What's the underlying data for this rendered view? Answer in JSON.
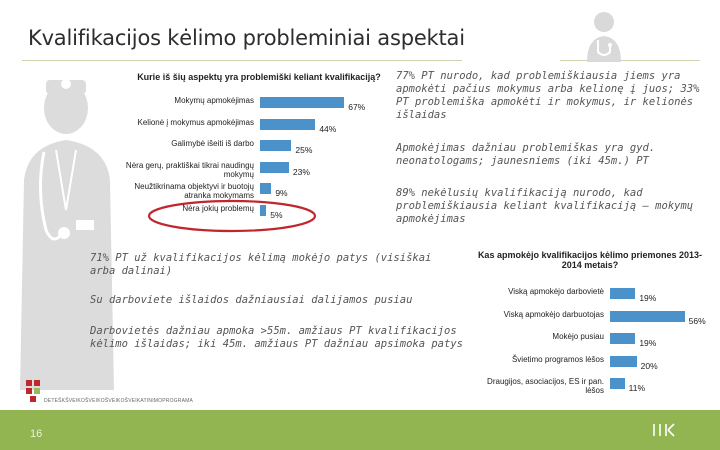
{
  "slide": {
    "title": "Kvalifikacijos kėlimo probleminiai aspektai",
    "page_number": "16",
    "org_text": "DETEŠKŠVEIKOŠVEIKOŠVEIKOŠVEIKATINIMOPROGRAMA"
  },
  "notes": {
    "n1": "77% PT nurodo, kad problemiškiausia jiems yra apmokėti pačius mokymus arba kelionę į juos; 33% PT problemiška apmokėti ir mokymus, ir kelionės išlaidas",
    "n2": "Apmokėjimas dažniau problemiškas yra gyd. neonatologams; jaunesniems (iki 45m.) PT",
    "n3": "89% nekėlusių kvalifikaciją nurodo, kad problemiškiausia keliant kvalifikaciją – mokymų apmokėjimas",
    "n4": "71% PT už kvalifikacijos kėlimą mokėjo patys (visiškai arba dalinai)",
    "n5": "Su darboviete išlaidos dažniausiai dalijamos pusiau",
    "n6": "Darbovietės dažniau apmoka >55m. amžiaus PT kvalifikacijos kėlimo išlaidas; iki 45m. amžiaus PT dažniau apsimoka patys"
  },
  "chart_data": [
    {
      "type": "bar",
      "orientation": "horizontal",
      "title": "Kurie iš šių aspektų yra problemiški keliant kvalifikaciją?",
      "categories": [
        "Mokymų apmokėjimas",
        "Kelionė į mokymus apmokėjimas",
        "Galimybė išeiti iš darbo",
        "Nėra gerų, praktiškai tikrai naudingų mokymų",
        "Neužtikrinama objektyvi ir buotojų atranka mokymams",
        "Nėra jokių problemų"
      ],
      "values": [
        67,
        44,
        25,
        23,
        9,
        5
      ],
      "value_labels": [
        "67%",
        "44%",
        "25%",
        "23%",
        "9%",
        "5%"
      ],
      "unit": "%",
      "xlim": [
        0,
        70
      ],
      "bar_color": "#4a92c9",
      "highlight_color": "#c0262d",
      "highlighted_category": "Nėra jokių problemų"
    },
    {
      "type": "bar",
      "orientation": "horizontal",
      "title": "Kas apmokėjo kvalifikacijos kėlimo priemones 2013-2014 metais?",
      "categories": [
        "Viską apmokėjo darbovietė",
        "Viską apmokėjo darbuotojas",
        "Mokėjo pusiau",
        "Švietimo programos lėšos",
        "Draugijos, asociacijos, ES ir pan. lėšos"
      ],
      "values": [
        19,
        56,
        19,
        20,
        11
      ],
      "value_labels": [
        "19%",
        "56%",
        "19%",
        "20%",
        "11%"
      ],
      "unit": "%",
      "xlim": [
        0,
        60
      ],
      "bar_color": "#4a92c9"
    }
  ],
  "colors": {
    "accent_green": "#92b552",
    "rule_green": "#c9d6b0",
    "bar_blue": "#4a92c9",
    "figure_grey": "#dcdcdc",
    "logo_red": "#c0262d"
  },
  "icons": {
    "figure": "doctor-figure-icon",
    "top": "doctor-head-icon",
    "footer": "brand-mark-icon",
    "org": "org-logo-icon"
  }
}
